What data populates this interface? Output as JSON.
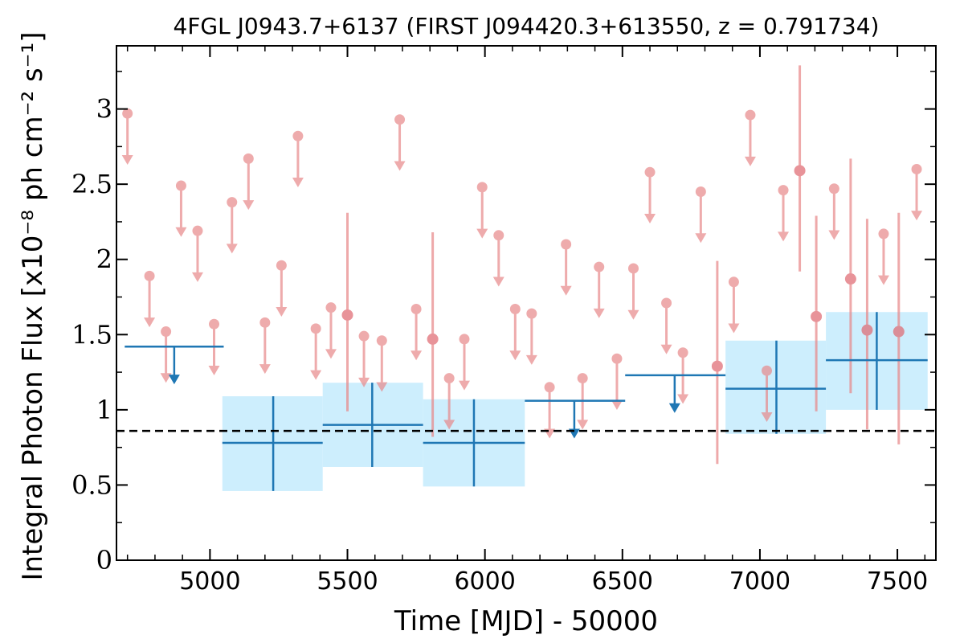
{
  "chart_data": {
    "type": "scatter",
    "title": "4FGL J0943.7+6137 (FIRST J094420.3+613550, z = 0.791734)",
    "xlabel": "Time [MJD] - 50000",
    "ylabel": "Integral Photon Flux [x10⁻⁸ ph cm⁻² s⁻¹]",
    "xlim": [
      4660,
      7640
    ],
    "ylim": [
      0,
      3.42
    ],
    "x_ticks": [
      5000,
      5500,
      6000,
      6500,
      7000,
      7500
    ],
    "x_tick_labels": [
      "5000",
      "5500",
      "6000",
      "6500",
      "7000",
      "7500"
    ],
    "y_ticks": [
      0,
      0.5,
      1,
      1.5,
      2,
      2.5,
      3
    ],
    "y_tick_labels": [
      "0",
      "0.5",
      "1",
      "1.5",
      "2",
      "2.5",
      "3"
    ],
    "mean_flux_line": 0.86,
    "colors": {
      "fine": "#e8888a",
      "coarse": "#1f77b4",
      "band": "#cdeefd",
      "mean": "#000000"
    },
    "series": [
      {
        "kind": "fine-binned",
        "upper_limits": [
          {
            "x": 4700,
            "y": 2.97
          },
          {
            "x": 4780,
            "y": 1.89
          },
          {
            "x": 4840,
            "y": 1.52
          },
          {
            "x": 4895,
            "y": 2.49
          },
          {
            "x": 4955,
            "y": 2.19
          },
          {
            "x": 5015,
            "y": 1.57
          },
          {
            "x": 5080,
            "y": 2.38
          },
          {
            "x": 5140,
            "y": 2.67
          },
          {
            "x": 5200,
            "y": 1.58
          },
          {
            "x": 5260,
            "y": 1.96
          },
          {
            "x": 5320,
            "y": 2.82
          },
          {
            "x": 5385,
            "y": 1.54
          },
          {
            "x": 5440,
            "y": 1.68
          },
          {
            "x": 5560,
            "y": 1.49
          },
          {
            "x": 5625,
            "y": 1.46
          },
          {
            "x": 5690,
            "y": 2.93
          },
          {
            "x": 5750,
            "y": 1.67
          },
          {
            "x": 5870,
            "y": 1.21
          },
          {
            "x": 5925,
            "y": 1.47
          },
          {
            "x": 5990,
            "y": 2.48
          },
          {
            "x": 6050,
            "y": 2.16
          },
          {
            "x": 6110,
            "y": 1.67
          },
          {
            "x": 6170,
            "y": 1.64
          },
          {
            "x": 6235,
            "y": 1.15
          },
          {
            "x": 6295,
            "y": 2.1
          },
          {
            "x": 6355,
            "y": 1.21
          },
          {
            "x": 6415,
            "y": 1.95
          },
          {
            "x": 6480,
            "y": 1.34
          },
          {
            "x": 6540,
            "y": 1.94
          },
          {
            "x": 6600,
            "y": 2.58
          },
          {
            "x": 6660,
            "y": 1.71
          },
          {
            "x": 6720,
            "y": 1.38
          },
          {
            "x": 6785,
            "y": 2.45
          },
          {
            "x": 6905,
            "y": 1.85
          },
          {
            "x": 6965,
            "y": 2.96
          },
          {
            "x": 7025,
            "y": 1.26
          },
          {
            "x": 7085,
            "y": 2.46
          },
          {
            "x": 7270,
            "y": 2.47
          },
          {
            "x": 7450,
            "y": 2.17
          },
          {
            "x": 7570,
            "y": 2.6
          }
        ],
        "detections": [
          {
            "x": 5500,
            "y": 1.63,
            "ylo": 0.99,
            "yhi": 2.31
          },
          {
            "x": 5810,
            "y": 1.47,
            "ylo": 0.82,
            "yhi": 2.18
          },
          {
            "x": 6845,
            "y": 1.29,
            "ylo": 0.64,
            "yhi": 1.99
          },
          {
            "x": 7145,
            "y": 2.59,
            "ylo": 1.92,
            "yhi": 3.29
          },
          {
            "x": 7205,
            "y": 1.62,
            "ylo": 0.99,
            "yhi": 2.29
          },
          {
            "x": 7330,
            "y": 1.87,
            "ylo": 1.11,
            "yhi": 2.67
          },
          {
            "x": 7390,
            "y": 1.53,
            "ylo": 0.87,
            "yhi": 2.27
          },
          {
            "x": 7505,
            "y": 1.52,
            "ylo": 0.77,
            "yhi": 2.31
          }
        ]
      },
      {
        "kind": "coarse-binned",
        "upper_limits": [
          {
            "x0": 4690,
            "x1": 5050,
            "xc": 4870,
            "y": 1.42
          },
          {
            "x0": 6145,
            "x1": 6510,
            "xc": 6325,
            "y": 1.06
          },
          {
            "x0": 6510,
            "x1": 6875,
            "xc": 6690,
            "y": 1.23
          }
        ],
        "detections": [
          {
            "x0": 5045,
            "x1": 5410,
            "xc": 5230,
            "y": 0.78,
            "ylo": 0.46,
            "yhi": 1.09
          },
          {
            "x0": 5410,
            "x1": 5775,
            "xc": 5590,
            "y": 0.9,
            "ylo": 0.62,
            "yhi": 1.18
          },
          {
            "x0": 5775,
            "x1": 6145,
            "xc": 5960,
            "y": 0.78,
            "ylo": 0.49,
            "yhi": 1.07
          },
          {
            "x0": 6875,
            "x1": 7240,
            "xc": 7060,
            "y": 1.14,
            "ylo": 0.84,
            "yhi": 1.46
          },
          {
            "x0": 7240,
            "x1": 7610,
            "xc": 7425,
            "y": 1.33,
            "ylo": 1.0,
            "yhi": 1.65
          }
        ]
      }
    ]
  }
}
